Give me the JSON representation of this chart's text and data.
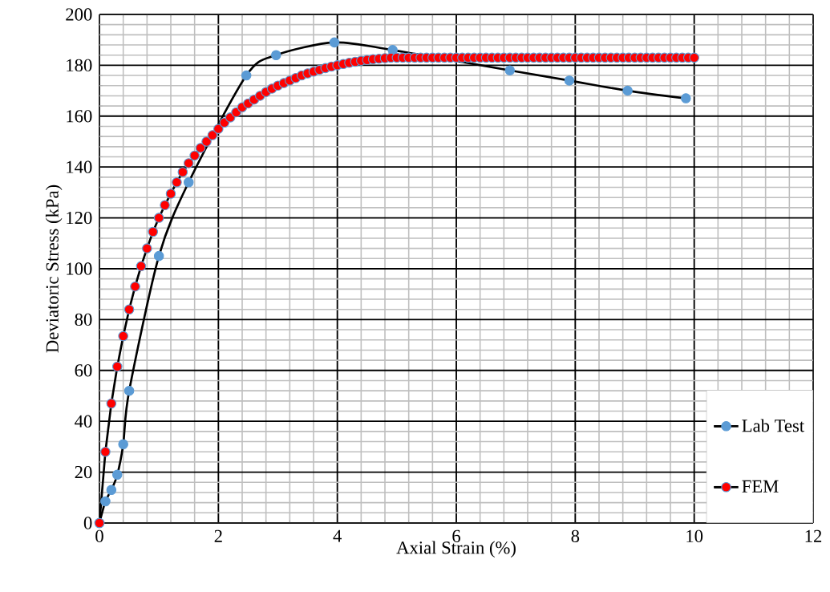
{
  "chart_data": {
    "type": "line",
    "xlabel": "Axial Strain (%)",
    "ylabel": "Deviatoric Stress (kPa)",
    "xlim": [
      0,
      12
    ],
    "ylim": [
      0,
      200
    ],
    "xticks": [
      0,
      2,
      4,
      6,
      8,
      10,
      12
    ],
    "yticks": [
      0,
      20,
      40,
      60,
      80,
      100,
      120,
      140,
      160,
      180,
      200
    ],
    "grid": true,
    "legend": "bottom right",
    "marker": "circle",
    "line_style": "solid",
    "series": [
      {
        "name": "Lab Test",
        "color": "#5b9bd5",
        "x": [
          0,
          0.1,
          0.2,
          0.3,
          0.4,
          0.5,
          1.0,
          1.5,
          2.0,
          2.47,
          2.97,
          3.95,
          4.93,
          6.9,
          7.9,
          8.88,
          9.86
        ],
        "values": [
          0,
          8.5,
          13,
          19,
          31,
          52,
          105,
          134,
          null,
          176,
          184,
          189,
          186,
          178,
          174,
          170,
          167
        ]
      },
      {
        "name": "FEM",
        "color": "#ff0000",
        "x": [
          0,
          0.1,
          0.2,
          0.3,
          0.4,
          0.5,
          0.6,
          0.7,
          0.8,
          0.9,
          1.0,
          1.1,
          1.2,
          1.3,
          1.4,
          1.5,
          1.6,
          1.7,
          1.8,
          1.9,
          2.0,
          2.1,
          2.2,
          2.3,
          2.4,
          2.5,
          2.6,
          2.7,
          2.8,
          2.9,
          3.0,
          3.1,
          3.2,
          3.3,
          3.4,
          3.5,
          3.6,
          3.7,
          3.8,
          3.9,
          4.0,
          4.1,
          4.2,
          4.3,
          4.4,
          4.5,
          4.6,
          4.7,
          4.8,
          4.9,
          5.0,
          5.1,
          5.2,
          5.3,
          5.4,
          5.5,
          5.6,
          5.7,
          5.8,
          5.9,
          6.0,
          6.1,
          6.2,
          6.3,
          6.4,
          6.5,
          6.6,
          6.7,
          6.8,
          6.9,
          7.0,
          7.1,
          7.2,
          7.3,
          7.4,
          7.5,
          7.6,
          7.7,
          7.8,
          7.9,
          8.0,
          8.1,
          8.2,
          8.3,
          8.4,
          8.5,
          8.6,
          8.7,
          8.8,
          8.9,
          9.0,
          9.1,
          9.2,
          9.3,
          9.4,
          9.5,
          9.6,
          9.7,
          9.8,
          9.9,
          10.0
        ],
        "values": [
          0,
          28,
          47,
          61.5,
          73.5,
          84,
          93,
          101,
          108,
          114.5,
          120,
          125,
          129.5,
          134,
          138,
          141.5,
          144.5,
          147.5,
          150,
          152.5,
          155,
          157.5,
          159.5,
          161.5,
          163.5,
          165,
          166.5,
          168,
          169.5,
          170.8,
          172,
          173,
          174,
          175,
          176,
          176.8,
          177.5,
          178.2,
          178.9,
          179.5,
          180,
          180.5,
          181,
          181.4,
          181.8,
          182.1,
          182.4,
          182.6,
          182.8,
          183,
          183,
          183,
          183,
          183,
          183,
          183,
          183,
          183,
          183,
          183,
          183,
          183,
          183,
          183,
          183,
          183,
          183,
          183,
          183,
          183,
          183,
          183,
          183,
          183,
          183,
          183,
          183,
          183,
          183,
          183,
          183,
          183,
          183,
          183,
          183,
          183,
          183,
          183,
          183,
          183,
          183,
          183,
          183,
          183,
          183,
          183,
          183,
          183,
          183,
          183,
          183
        ]
      }
    ]
  }
}
